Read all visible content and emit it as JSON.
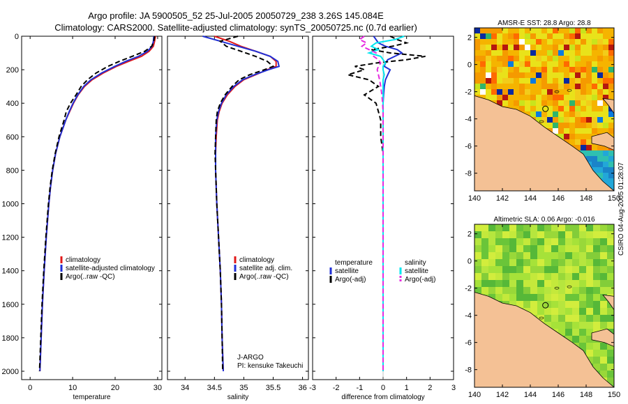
{
  "header": {
    "line1": "Argo profile: JA 5900505_52 25-Jul-2005 20050729_238 3.26S 145.084E",
    "line2": "Climatology: CARS2000. Satellite-adjusted climatology: synTS_20050725.nc (0.7d earlier)"
  },
  "side_label": "CSIRO 04-Aug-2005 01:28:07",
  "credit": {
    "line1": "J-ARGO",
    "line2": "PI: kensuke Takeuchi"
  },
  "colors": {
    "climatology": "#e11919",
    "satellite": "#1f2fd6",
    "argo": "#000000",
    "salinity_sat": "#00e5ef",
    "salinity_argo": "#e629e0",
    "land": "#f4c195",
    "sst_base": "#f0d21e",
    "sla_base": "#a6e23a"
  },
  "chart_data": [
    {
      "type": "line",
      "panel": "temperature",
      "xlabel": "temperature",
      "xlim": [
        -2,
        31
      ],
      "xticks": [
        0,
        10,
        20,
        30
      ],
      "ylim": [
        0,
        2050
      ],
      "yticks": [
        0,
        200,
        400,
        600,
        800,
        1000,
        1200,
        1400,
        1600,
        1800,
        2000
      ],
      "depth": [
        0,
        30,
        60,
        90,
        120,
        150,
        180,
        220,
        260,
        300,
        350,
        400,
        450,
        500,
        600,
        700,
        800,
        900,
        1000,
        1200,
        1400,
        1600,
        1800,
        2000
      ],
      "series": [
        {
          "name": "climatology",
          "style": "solid",
          "values": [
            29.5,
            29.3,
            29.0,
            28.0,
            26.2,
            23.2,
            20.3,
            17.2,
            14.6,
            12.8,
            11.3,
            10.2,
            9.3,
            8.4,
            7.0,
            6.0,
            5.3,
            4.8,
            4.4,
            3.8,
            3.3,
            2.9,
            2.6,
            2.3
          ]
        },
        {
          "name": "satellite-adjusted climatology",
          "style": "solid",
          "values": [
            29.1,
            29.0,
            28.7,
            27.6,
            25.5,
            22.5,
            19.9,
            16.8,
            14.3,
            12.6,
            11.2,
            10.1,
            9.2,
            8.4,
            7.0,
            6.0,
            5.3,
            4.8,
            4.4,
            3.8,
            3.3,
            2.9,
            2.6,
            2.3
          ]
        },
        {
          "name": "Argo(..raw -QC)",
          "style": "dash",
          "values": [
            29.3,
            29.1,
            28.6,
            27.0,
            24.0,
            21.0,
            18.3,
            15.5,
            13.5,
            12.0,
            10.8,
            9.5,
            8.5,
            8.0,
            6.8,
            5.9,
            5.2,
            4.7,
            4.3,
            3.7,
            3.2,
            2.8,
            2.5,
            2.2
          ]
        }
      ],
      "legend": [
        "climatology",
        "satellite-adjusted climatology",
        "Argo(..raw -QC)"
      ]
    },
    {
      "type": "line",
      "panel": "salinity",
      "xlabel": "salinity",
      "xlim": [
        33.7,
        36.1
      ],
      "xticks": [
        34,
        34.5,
        35,
        35.5,
        36
      ],
      "ylim": [
        0,
        2050
      ],
      "depth": [
        0,
        30,
        60,
        90,
        120,
        150,
        180,
        200,
        230,
        260,
        300,
        350,
        400,
        450,
        500,
        600,
        700,
        800,
        1000,
        1200,
        1400,
        1600,
        1800,
        2000
      ],
      "series": [
        {
          "name": "climatology",
          "style": "solid",
          "values": [
            34.5,
            34.75,
            34.95,
            35.2,
            35.45,
            35.55,
            35.55,
            35.4,
            35.2,
            35.0,
            34.85,
            34.72,
            34.63,
            34.58,
            34.55,
            34.53,
            34.52,
            34.52,
            34.54,
            34.57,
            34.6,
            34.62,
            34.63,
            34.65
          ]
        },
        {
          "name": "satellite adj. clim.",
          "style": "solid",
          "values": [
            34.3,
            34.6,
            34.9,
            35.2,
            35.45,
            35.58,
            35.6,
            35.42,
            35.18,
            34.98,
            34.83,
            34.7,
            34.62,
            34.57,
            34.54,
            34.52,
            34.52,
            34.52,
            34.54,
            34.57,
            34.6,
            34.62,
            34.63,
            34.65
          ]
        },
        {
          "name": "Argo(..raw -QC)",
          "style": "dash",
          "values": [
            34.9,
            34.6,
            34.7,
            34.95,
            35.2,
            35.4,
            35.5,
            35.35,
            35.1,
            34.92,
            34.8,
            34.68,
            34.6,
            34.55,
            34.53,
            34.52,
            34.51,
            34.52,
            34.54,
            34.57,
            34.6,
            34.62,
            34.63,
            34.64
          ]
        }
      ],
      "legend": [
        "climatology",
        "satellite adj. clim.",
        "Argo(..raw -QC)"
      ]
    },
    {
      "type": "line",
      "panel": "difference",
      "xlabel": "difference from climatology",
      "xlim": [
        -3,
        3
      ],
      "xticks": [
        -3,
        -2,
        -1,
        0,
        1,
        2,
        3
      ],
      "ylim": [
        0,
        2050
      ],
      "depth": [
        0,
        20,
        40,
        60,
        80,
        100,
        120,
        140,
        160,
        180,
        200,
        230,
        260,
        300,
        350,
        400,
        450,
        500,
        600,
        700,
        800,
        900,
        1000,
        1200,
        1400,
        1600,
        1800,
        2000
      ],
      "series": [
        {
          "name": "temperature satellite",
          "style": "solid",
          "values": [
            -0.4,
            -0.3,
            -0.2,
            0.1,
            0.6,
            0.8,
            0.5,
            0.2,
            0.1,
            0.05,
            0.3,
            0.2,
            0.1,
            0.05,
            0.02,
            0.0,
            0.0,
            0.0,
            0.0,
            0.0,
            0.0,
            0.0,
            0.0,
            0.0,
            0.0,
            0.0,
            0.0,
            0.0
          ]
        },
        {
          "name": "temperature Argo(-adj)",
          "style": "dash",
          "values": [
            0.3,
            0.6,
            1.0,
            0.4,
            -0.5,
            0.3,
            1.8,
            1.0,
            -0.3,
            -1.2,
            -0.8,
            -1.5,
            -0.6,
            -0.2,
            -0.8,
            -0.3,
            -0.2,
            -0.1,
            -0.1,
            0.0,
            0.0,
            0.0,
            0.0,
            0.0,
            0.0,
            0.0,
            0.0,
            0.0
          ]
        },
        {
          "name": "salinity satellite",
          "style": "solid",
          "values": [
            0.9,
            0.5,
            -0.3,
            -0.5,
            -0.2,
            -0.6,
            -0.1,
            0.0,
            0.1,
            0.0,
            0.0,
            0.05,
            0.0,
            0.0,
            0.0,
            0.0,
            0.0,
            0.0,
            0.0,
            0.0,
            0.0,
            0.0,
            0.0,
            0.0,
            0.0,
            0.0,
            0.0,
            0.0
          ]
        },
        {
          "name": "salinity Argo(-adj)",
          "style": "dash",
          "values": [
            -0.8,
            -1.0,
            -0.7,
            -0.9,
            -0.6,
            -0.3,
            -0.4,
            -0.2,
            -0.1,
            -0.2,
            -0.25,
            -0.2,
            -0.15,
            -0.1,
            -0.05,
            -0.02,
            0.0,
            0.0,
            0.0,
            0.0,
            0.0,
            0.0,
            0.0,
            0.0,
            0.0,
            0.0,
            0.0,
            0.0
          ]
        }
      ],
      "legend_left": {
        "title": "temperature",
        "items": [
          "satellite",
          "Argo(-adj)"
        ]
      },
      "legend_right": {
        "title": "salinity",
        "items": [
          "satellite",
          "Argo(-adj)"
        ]
      }
    },
    {
      "type": "heatmap",
      "panel": "sst_map",
      "title": "AMSR-E SST: 28.8 Argo: 28.8",
      "xlim": [
        140,
        150
      ],
      "ylim": [
        -9.3,
        2.7
      ],
      "xticks": [
        140,
        142,
        144,
        146,
        148,
        150
      ],
      "yticks": [
        2,
        0,
        -2,
        -4,
        -6,
        -8
      ],
      "marker": [
        145.084,
        -3.26
      ]
    },
    {
      "type": "heatmap",
      "panel": "sla_map",
      "title": "Altimetric SLA: 0.06 Argo: -0.016",
      "xlim": [
        140,
        150
      ],
      "ylim": [
        -9.3,
        2.7
      ],
      "xticks": [
        140,
        142,
        144,
        146,
        148,
        150
      ],
      "yticks": [
        2,
        0,
        -2,
        -4,
        -6,
        -8
      ],
      "marker": [
        145.084,
        -3.26
      ]
    }
  ]
}
